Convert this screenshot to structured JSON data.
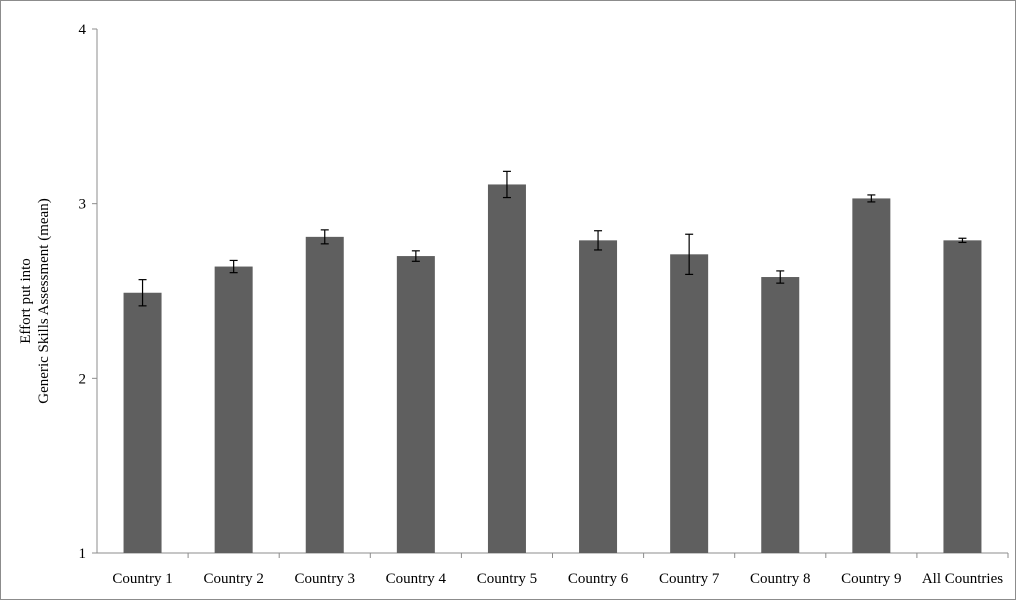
{
  "chart_data": {
    "type": "bar",
    "categories": [
      "Country 1",
      "Country 2",
      "Country 3",
      "Country 4",
      "Country 5",
      "Country 6",
      "Country 7",
      "Country 8",
      "Country 9",
      "All Countries"
    ],
    "values": [
      2.49,
      2.64,
      2.81,
      2.7,
      3.11,
      2.79,
      2.71,
      2.58,
      3.03,
      2.79
    ],
    "error": [
      0.075,
      0.035,
      0.04,
      0.03,
      0.075,
      0.055,
      0.115,
      0.035,
      0.02,
      0.012
    ],
    "ylim": [
      1,
      4
    ],
    "yticks": [
      "1",
      "2",
      "3",
      "4"
    ],
    "ylabel_line1": "Effort put into",
    "ylabel_line2": "Generic Skills Assessment  (mean)",
    "xlabel": "",
    "title": "",
    "grid": false,
    "bar_color": "#5f5f5f",
    "axis_color": "#8c8c8c"
  }
}
